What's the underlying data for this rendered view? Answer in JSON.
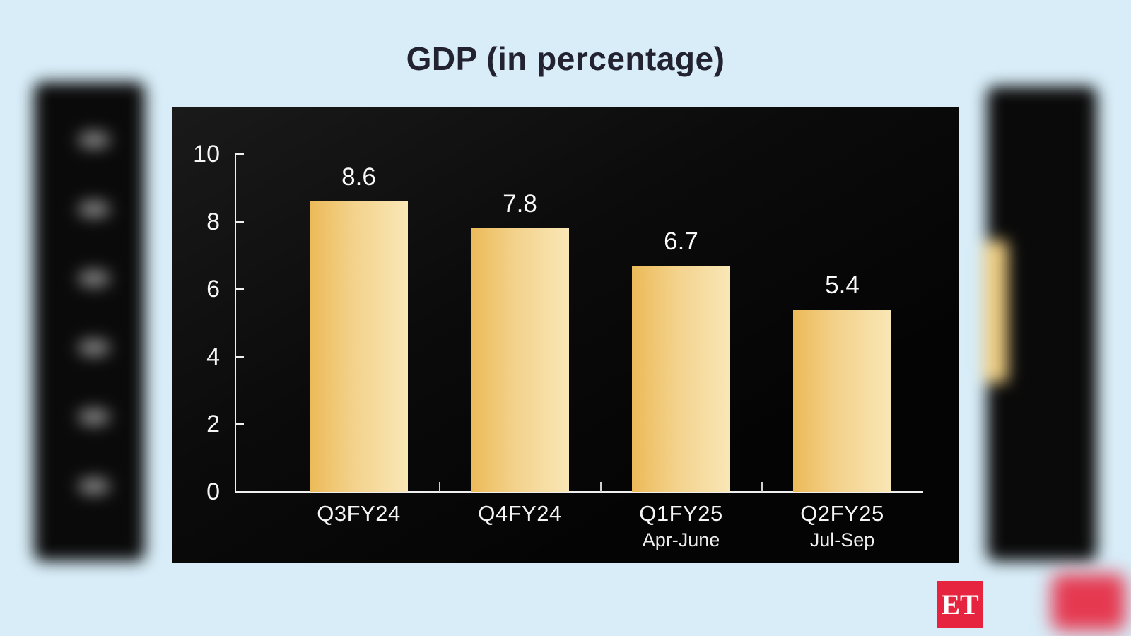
{
  "title": "GDP (in percentage)",
  "branding": {
    "logo_text": "ET",
    "logo_color": "#e6243f"
  },
  "colors": {
    "page_background": "#d8edf8",
    "chart_background": "#0a0a0a",
    "title_text": "#232230",
    "axis_text": "#f5f5f5",
    "bar_gradient_start": "#ecba58",
    "bar_gradient_end": "#f9e7b6"
  },
  "chart_data": {
    "type": "bar",
    "title": "GDP (in percentage)",
    "categories": [
      "Q3FY24",
      "Q4FY24",
      "Q1FY25",
      "Q2FY25"
    ],
    "category_sublabels": [
      "",
      "",
      "Apr-June",
      "Jul-Sep"
    ],
    "values": [
      8.6,
      7.8,
      6.7,
      5.4
    ],
    "value_labels": [
      "8.6",
      "7.8",
      "6.7",
      "5.4"
    ],
    "ylabel": "",
    "xlabel": "",
    "ylim": [
      0,
      10
    ],
    "yticks": [
      0,
      2,
      4,
      6,
      8,
      10
    ],
    "grid": false,
    "legend": false
  }
}
